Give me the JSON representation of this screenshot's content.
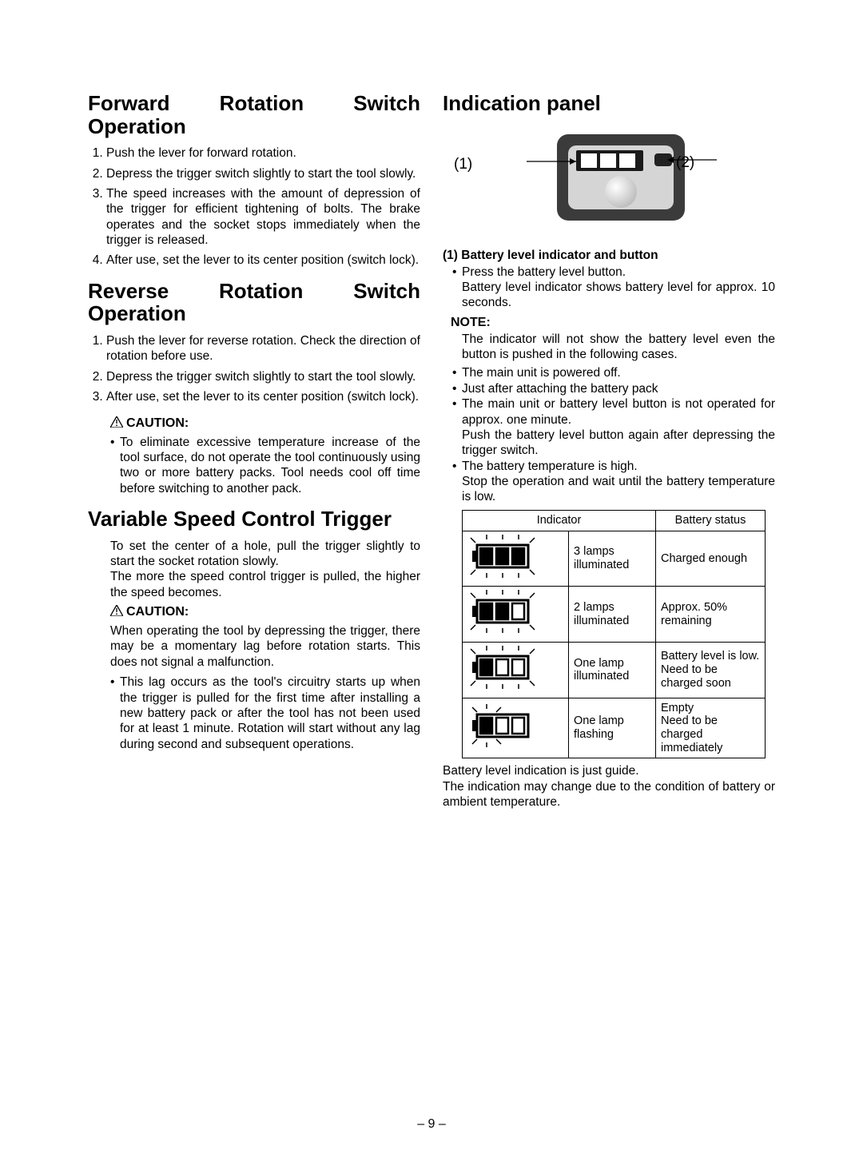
{
  "left": {
    "h_forward": "Forward Rotation Switch Operation",
    "forward_steps": [
      "Push the lever for forward rotation.",
      "Depress the trigger switch slightly to start the tool slowly.",
      "The speed increases with the amount of depression of the trigger for efficient tightening of bolts. The brake operates and the socket stops immediately when the trigger is released.",
      "After use, set the lever to its center position (switch lock)."
    ],
    "h_reverse": "Reverse Rotation Switch Operation",
    "reverse_steps": [
      "Push the lever for reverse rotation. Check the direction of rotation before use.",
      "Depress the trigger switch slightly to start the tool slowly.",
      "After use, set the lever to its center position (switch lock)."
    ],
    "caution1_label": "CAUTION:",
    "caution1_bullets": [
      "To eliminate excessive temperature increase of the tool surface, do not operate the tool continuously using two or more battery packs. Tool needs cool off time before switching to another pack."
    ],
    "h_trigger": "Variable Speed Control Trigger",
    "trigger_para": "To set the center of a hole, pull the trigger slightly to start the socket rotation slowly.\nThe more the speed control trigger is pulled, the higher the speed becomes.",
    "caution2_label": "CAUTION:",
    "caution2_para": "When operating the tool by depressing the trigger, there may be a momentary lag before rotation starts. This does not signal a malfunction.",
    "caution2_bullets": [
      "This lag occurs as the tool's circuitry starts up when the trigger is pulled for the first time after installing a new battery pack or after the tool has not been used for at least 1 minute. Rotation will start without any lag during second and subsequent operations."
    ]
  },
  "right": {
    "h_panel": "Indication panel",
    "callout1": "(1)",
    "callout2": "(2)",
    "sub1": "(1) Battery level indicator and button",
    "sub1_bullets": [
      "Press the battery level button.\nBattery level indicator shows battery level for approx. 10 seconds."
    ],
    "note_label": "NOTE:",
    "note_para": "The indicator will not show the battery level even the button is pushed in the following cases.",
    "note_bullets": [
      "The main unit is powered off.",
      "Just after attaching the battery pack",
      "The main unit or battery level button is not operated for approx. one minute.\nPush the battery level button again after depressing the trigger switch.",
      "The battery temperature is high.\nStop the operation and wait until the battery temperature is low."
    ],
    "table": {
      "head_indicator": "Indicator",
      "head_status": "Battery status",
      "rows": [
        {
          "lamps": "3 lamps illuminated",
          "status": "Charged enough",
          "fill": [
            1,
            1,
            1
          ],
          "flash": false
        },
        {
          "lamps": "2 lamps illuminated",
          "status": "Approx. 50% remaining",
          "fill": [
            1,
            1,
            0
          ],
          "flash": false
        },
        {
          "lamps": "One lamp illuminated",
          "status": "Battery level is low.\nNeed to be charged soon",
          "fill": [
            1,
            0,
            0
          ],
          "flash": false
        },
        {
          "lamps": "One lamp flashing",
          "status": "Empty\nNeed to be charged immediately",
          "fill": [
            1,
            0,
            0
          ],
          "flash": true
        }
      ]
    },
    "post_table": "Battery level indication is just guide.\nThe indication may change due to the condition of battery or ambient temperature."
  },
  "page_number": "– 9 –"
}
